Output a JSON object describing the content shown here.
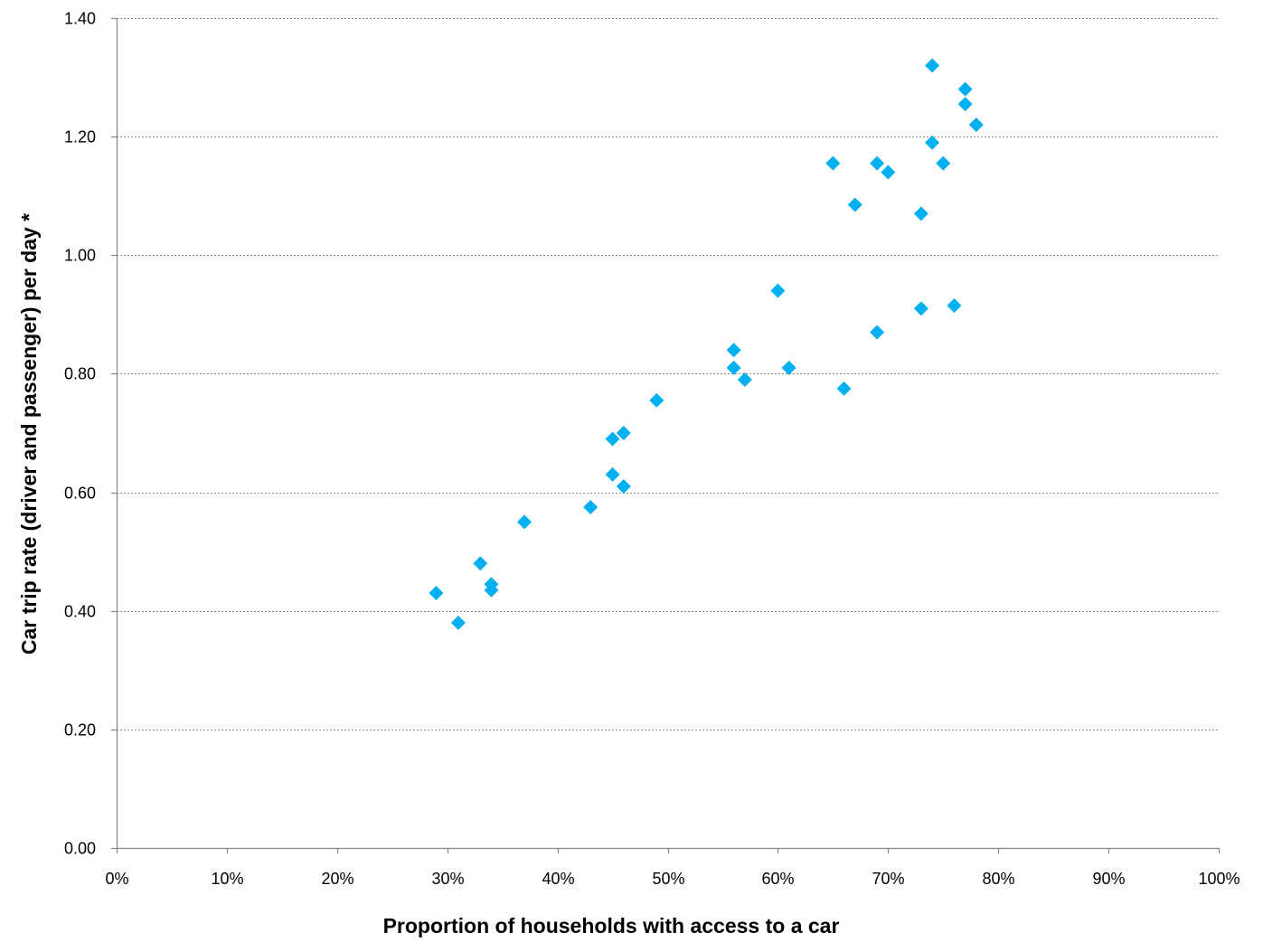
{
  "chart_data": {
    "type": "scatter",
    "xlabel": "Proportion of households with access to a car",
    "ylabel": "Car trip rate (driver and passenger) per day *",
    "xlim": [
      0,
      1
    ],
    "ylim": [
      0,
      1.4
    ],
    "x_ticks": [
      0,
      0.1,
      0.2,
      0.3,
      0.4,
      0.5,
      0.6,
      0.7,
      0.8,
      0.9,
      1.0
    ],
    "x_tick_labels": [
      "0%",
      "10%",
      "20%",
      "30%",
      "40%",
      "50%",
      "60%",
      "70%",
      "80%",
      "90%",
      "100%"
    ],
    "y_ticks": [
      0,
      0.2,
      0.4,
      0.6,
      0.8,
      1.0,
      1.2,
      1.4
    ],
    "y_tick_labels": [
      "0.00",
      "0.20",
      "0.40",
      "0.60",
      "0.80",
      "1.00",
      "1.20",
      "1.40"
    ],
    "grid": "horizontal-dotted",
    "marker": "diamond",
    "marker_color": "#00b0f0",
    "series": [
      {
        "points": [
          [
            0.29,
            0.43
          ],
          [
            0.31,
            0.38
          ],
          [
            0.33,
            0.48
          ],
          [
            0.34,
            0.445
          ],
          [
            0.34,
            0.435
          ],
          [
            0.37,
            0.55
          ],
          [
            0.43,
            0.575
          ],
          [
            0.45,
            0.69
          ],
          [
            0.45,
            0.63
          ],
          [
            0.46,
            0.7
          ],
          [
            0.46,
            0.61
          ],
          [
            0.49,
            0.755
          ],
          [
            0.56,
            0.84
          ],
          [
            0.56,
            0.81
          ],
          [
            0.57,
            0.79
          ],
          [
            0.6,
            0.94
          ],
          [
            0.61,
            0.81
          ],
          [
            0.65,
            1.155
          ],
          [
            0.66,
            0.775
          ],
          [
            0.67,
            1.085
          ],
          [
            0.69,
            1.155
          ],
          [
            0.69,
            0.87
          ],
          [
            0.7,
            1.14
          ],
          [
            0.73,
            1.07
          ],
          [
            0.73,
            0.91
          ],
          [
            0.74,
            1.32
          ],
          [
            0.74,
            1.19
          ],
          [
            0.75,
            1.155
          ],
          [
            0.76,
            0.915
          ],
          [
            0.77,
            1.28
          ],
          [
            0.77,
            1.255
          ],
          [
            0.78,
            1.22
          ]
        ]
      }
    ]
  }
}
